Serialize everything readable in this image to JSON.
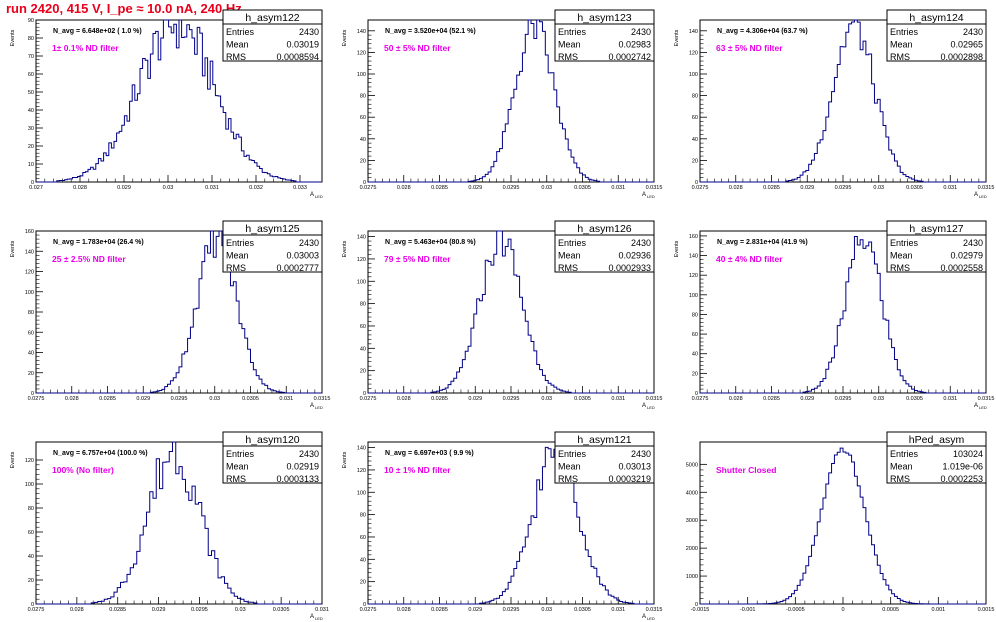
{
  "page": {
    "title": "run 2420,   415 V, I_pe ≈ 10.0 nA, 240 Hz"
  },
  "colors": {
    "title": "#e8001c",
    "annotation": "#e800e8",
    "histogram": "#000088"
  },
  "chart_data": [
    {
      "type": "histogram",
      "name": "h_asym122",
      "stats": {
        "Entries": "2430",
        "Mean": "0.03019",
        "RMS": "0.0008594"
      },
      "navg": "N_avg = 6.648e+02 ( 1.0 %)",
      "note": "1± 0.1% ND filter",
      "ylabel": "Events",
      "xlabel": "A_LED",
      "xlim": [
        0.027,
        0.0335
      ],
      "ylim": [
        0,
        90
      ],
      "xticks": [
        "0.027",
        "0.028",
        "0.029",
        "0.03",
        "0.031",
        "0.032",
        "0.033"
      ],
      "xtick_values": [
        0.027,
        0.028,
        0.029,
        0.03,
        0.031,
        0.032,
        0.033
      ],
      "yticks": [
        0,
        10,
        20,
        30,
        40,
        50,
        60,
        70,
        80,
        90
      ],
      "mean": 0.03019,
      "rms": 0.0008594,
      "peak": 88,
      "bins": 110,
      "rough": 0.18
    },
    {
      "type": "histogram",
      "name": "h_asym123",
      "stats": {
        "Entries": "2430",
        "Mean": "0.02983",
        "RMS": "0.0002742"
      },
      "navg": "N_avg = 3.520e+04 (52.1 %)",
      "note": "50 ± 5% ND filter",
      "ylabel": "Events",
      "xlabel": "A_LED",
      "xlim": [
        0.0275,
        0.0315
      ],
      "ylim": [
        0,
        150
      ],
      "xticks": [
        "0.0275",
        "0.028",
        "0.0285",
        "0.029",
        "0.0295",
        "0.03",
        "0.0305",
        "0.031",
        "0.0315"
      ],
      "xtick_values": [
        0.0275,
        0.028,
        0.0285,
        0.029,
        0.0295,
        0.03,
        0.0305,
        0.031,
        0.0315
      ],
      "yticks": [
        0,
        20,
        40,
        60,
        80,
        100,
        120,
        140
      ],
      "mean": 0.02983,
      "rms": 0.0002742,
      "peak": 143,
      "bins": 100,
      "rough": 0.12
    },
    {
      "type": "histogram",
      "name": "h_asym124",
      "stats": {
        "Entries": "2430",
        "Mean": "0.02965",
        "RMS": "0.0002898"
      },
      "navg": "N_avg = 4.306e+04 (63.7 %)",
      "note": "63 ± 5% ND filter",
      "ylabel": "Events",
      "xlabel": "A_LED",
      "xlim": [
        0.0275,
        0.0315
      ],
      "ylim": [
        0,
        150
      ],
      "xticks": [
        "0.0275",
        "0.028",
        "0.0285",
        "0.029",
        "0.0295",
        "0.03",
        "0.0305",
        "0.031",
        "0.0315"
      ],
      "xtick_values": [
        0.0275,
        0.028,
        0.0285,
        0.029,
        0.0295,
        0.03,
        0.0305,
        0.031,
        0.0315
      ],
      "yticks": [
        0,
        20,
        40,
        60,
        80,
        100,
        120,
        140
      ],
      "mean": 0.02965,
      "rms": 0.0002898,
      "peak": 145,
      "bins": 100,
      "rough": 0.12
    },
    {
      "type": "histogram",
      "name": "h_asym125",
      "stats": {
        "Entries": "2430",
        "Mean": "0.03003",
        "RMS": "0.0002777"
      },
      "navg": "N_avg = 1.783e+04 (26.4 %)",
      "note": "25 ± 2.5% ND filter",
      "ylabel": "Events",
      "xlabel": "A_LED",
      "xlim": [
        0.0275,
        0.0315
      ],
      "ylim": [
        0,
        160
      ],
      "xticks": [
        "0.0275",
        "0.028",
        "0.0285",
        "0.029",
        "0.0295",
        "0.03",
        "0.0305",
        "0.031",
        "0.0315"
      ],
      "xtick_values": [
        0.0275,
        0.028,
        0.0285,
        0.029,
        0.0295,
        0.03,
        0.0305,
        0.031,
        0.0315
      ],
      "yticks": [
        0,
        20,
        40,
        60,
        80,
        100,
        120,
        140,
        160
      ],
      "mean": 0.03003,
      "rms": 0.0002777,
      "peak": 152,
      "bins": 100,
      "rough": 0.12
    },
    {
      "type": "histogram",
      "name": "h_asym126",
      "stats": {
        "Entries": "2430",
        "Mean": "0.02936",
        "RMS": "0.0002933"
      },
      "navg": "N_avg = 5.463e+04 (80.8 %)",
      "note": "79 ± 5% ND filter",
      "ylabel": "Events",
      "xlabel": "A_LED",
      "xlim": [
        0.0275,
        0.0315
      ],
      "ylim": [
        0,
        145
      ],
      "xticks": [
        "0.0275",
        "0.028",
        "0.0285",
        "0.029",
        "0.0295",
        "0.03",
        "0.0305",
        "0.031",
        "0.0315"
      ],
      "xtick_values": [
        0.0275,
        0.028,
        0.0285,
        0.029,
        0.0295,
        0.03,
        0.0305,
        0.031,
        0.0315
      ],
      "yticks": [
        0,
        20,
        40,
        60,
        80,
        100,
        120,
        140
      ],
      "mean": 0.02936,
      "rms": 0.0002933,
      "peak": 138,
      "bins": 100,
      "rough": 0.12
    },
    {
      "type": "histogram",
      "name": "h_asym127",
      "stats": {
        "Entries": "2430",
        "Mean": "0.02979",
        "RMS": "0.0002558"
      },
      "navg": "N_avg = 2.831e+04 (41.9 %)",
      "note": "40 ± 4% ND filter",
      "ylabel": "Events",
      "xlabel": "A_LED",
      "xlim": [
        0.0275,
        0.0315
      ],
      "ylim": [
        0,
        165
      ],
      "xticks": [
        "0.0275",
        "0.028",
        "0.0285",
        "0.029",
        "0.0295",
        "0.03",
        "0.0305",
        "0.031",
        "0.0315"
      ],
      "xtick_values": [
        0.0275,
        0.028,
        0.0285,
        0.029,
        0.0295,
        0.03,
        0.0305,
        0.031,
        0.0315
      ],
      "yticks": [
        0,
        20,
        40,
        60,
        80,
        100,
        120,
        140,
        160
      ],
      "mean": 0.02979,
      "rms": 0.0002558,
      "peak": 158,
      "bins": 100,
      "rough": 0.12
    },
    {
      "type": "histogram",
      "name": "h_asym120",
      "stats": {
        "Entries": "2430",
        "Mean": "0.02919",
        "RMS": "0.0003133"
      },
      "navg": "N_avg = 6.757e+04 (100.0 %)",
      "note": "100% (No filter)",
      "ylabel": "Events",
      "xlabel": "A_LED",
      "xlim": [
        0.0275,
        0.031
      ],
      "ylim": [
        0,
        135
      ],
      "xticks": [
        "0.0275",
        "0.028",
        "0.0285",
        "0.029",
        "0.0295",
        "0.03",
        "0.0305",
        "0.031"
      ],
      "xtick_values": [
        0.0275,
        0.028,
        0.0285,
        0.029,
        0.0295,
        0.03,
        0.0305,
        0.031
      ],
      "yticks": [
        0,
        20,
        40,
        60,
        80,
        100,
        120
      ],
      "mean": 0.02919,
      "rms": 0.0003133,
      "peak": 128,
      "bins": 88,
      "rough": 0.18
    },
    {
      "type": "histogram",
      "name": "h_asym121",
      "stats": {
        "Entries": "2430",
        "Mean": "0.03013",
        "RMS": "0.0003219"
      },
      "navg": "N_avg = 6.697e+03 ( 9.9 %)",
      "note": "10 ± 1% ND filter",
      "ylabel": "Events",
      "xlabel": "A_LED",
      "xlim": [
        0.0275,
        0.0315
      ],
      "ylim": [
        0,
        145
      ],
      "xticks": [
        "0.0275",
        "0.028",
        "0.0285",
        "0.029",
        "0.0295",
        "0.03",
        "0.0305",
        "0.031",
        "0.0315"
      ],
      "xtick_values": [
        0.0275,
        0.028,
        0.0285,
        0.029,
        0.0295,
        0.03,
        0.0305,
        0.031,
        0.0315
      ],
      "yticks": [
        0,
        20,
        40,
        60,
        80,
        100,
        120,
        140
      ],
      "mean": 0.03013,
      "rms": 0.0003219,
      "peak": 136,
      "bins": 100,
      "rough": 0.15
    },
    {
      "type": "histogram",
      "name": "hPed_asym",
      "stats": {
        "Entries": "103024",
        "Mean": "1.019e-06",
        "RMS": "0.0002253"
      },
      "navg": "",
      "note": "Shutter Closed",
      "ylabel": "",
      "xlabel": "",
      "xlim": [
        -0.0015,
        0.0015
      ],
      "ylim": [
        0,
        5800
      ],
      "xticks": [
        "-0.0015",
        "-0.001",
        "-0.0005",
        "0",
        "0.0005",
        "0.001",
        "0.0015"
      ],
      "xtick_values": [
        -0.0015,
        -0.001,
        -0.0005,
        0,
        0.0005,
        0.001,
        0.0015
      ],
      "yticks": [
        0,
        1000,
        2000,
        3000,
        4000,
        5000
      ],
      "mean": 1e-06,
      "rms": 0.0002253,
      "peak": 5550,
      "bins": 100,
      "rough": 0.02
    }
  ]
}
